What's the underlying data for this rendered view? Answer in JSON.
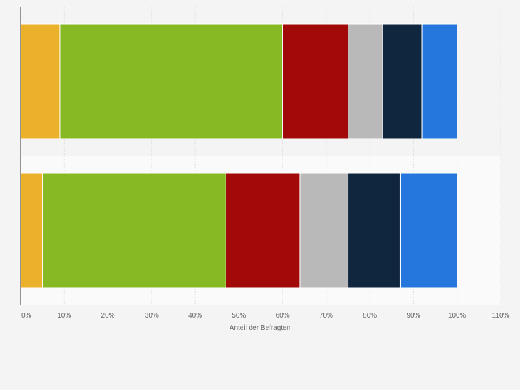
{
  "chart_data": {
    "type": "bar",
    "orientation": "horizontal",
    "stacked": true,
    "title": "",
    "xlabel": "Anteil der Befragten",
    "ylabel": "",
    "xlim": [
      0,
      110
    ],
    "x_ticks": [
      0,
      10,
      20,
      30,
      40,
      50,
      60,
      70,
      80,
      90,
      100,
      110
    ],
    "x_tick_labels": [
      "0%",
      "10%",
      "20%",
      "30%",
      "40%",
      "50%",
      "60%",
      "70%",
      "80%",
      "90%",
      "100%",
      "110%"
    ],
    "grid": true,
    "legend": "none",
    "categories": [
      "",
      ""
    ],
    "series": [
      {
        "color": "#ecb12a",
        "values": [
          9,
          5
        ]
      },
      {
        "color": "#86b924",
        "values": [
          51,
          42
        ]
      },
      {
        "color": "#a20a0a",
        "values": [
          15,
          17
        ]
      },
      {
        "color": "#b9b9b9",
        "values": [
          8,
          11
        ]
      },
      {
        "color": "#10263f",
        "values": [
          9,
          12
        ]
      },
      {
        "color": "#2577de",
        "values": [
          8,
          13
        ]
      }
    ]
  }
}
